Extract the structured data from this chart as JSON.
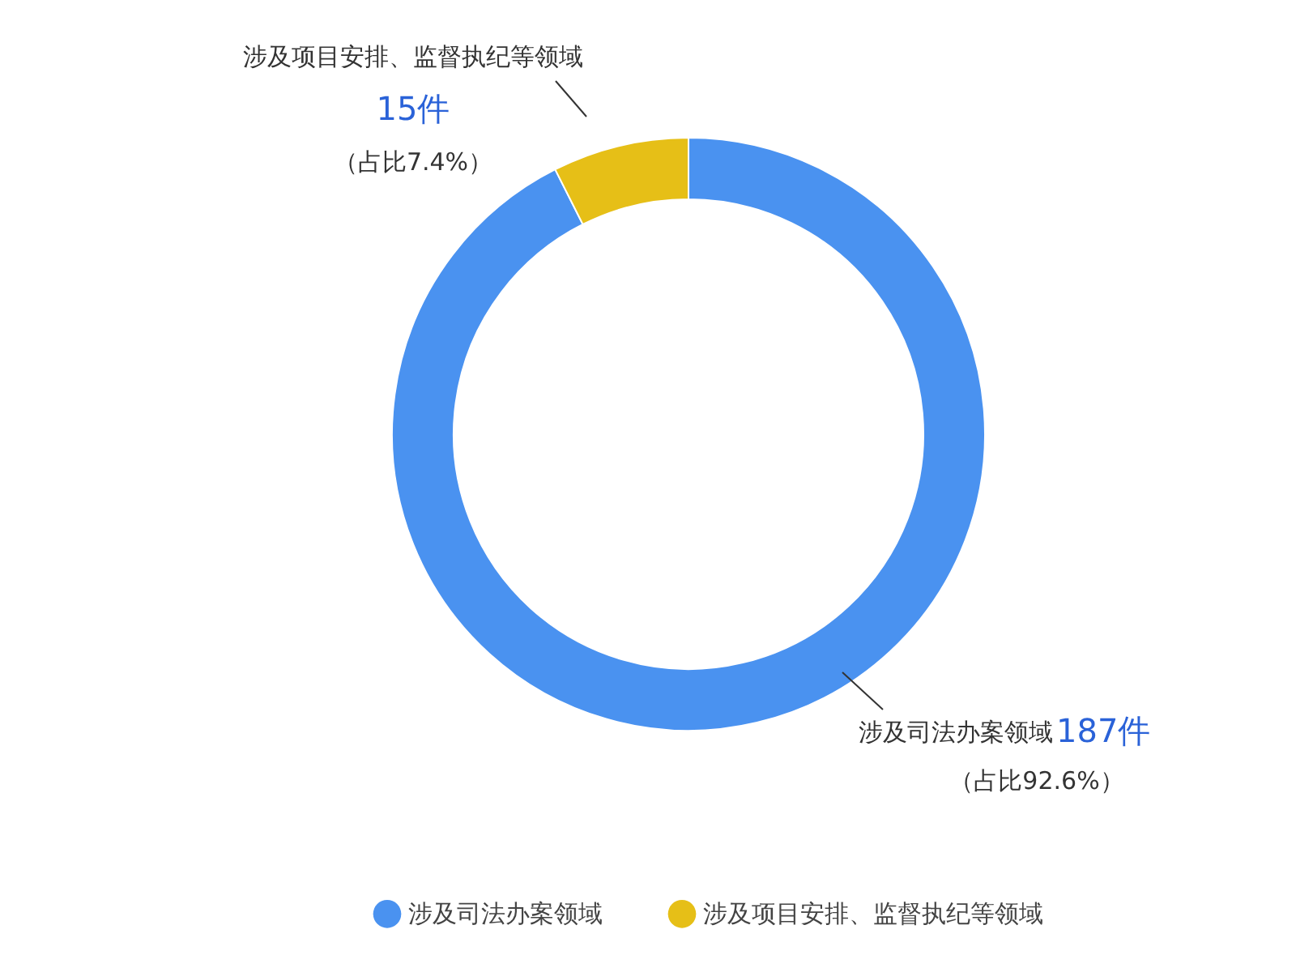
{
  "chart_data": {
    "type": "donut",
    "categories": [
      "涉及司法办案领域",
      "涉及项目安排、监督执纪等领域"
    ],
    "values": [
      187,
      15
    ],
    "colors": [
      "#4a92f0",
      "#e6bf17"
    ],
    "data_labels": true,
    "value_labels": [
      "187件",
      "15件"
    ],
    "annotations": [
      "（占比92.6%）",
      "（占比7.4%）"
    ],
    "legend": "bottom"
  }
}
